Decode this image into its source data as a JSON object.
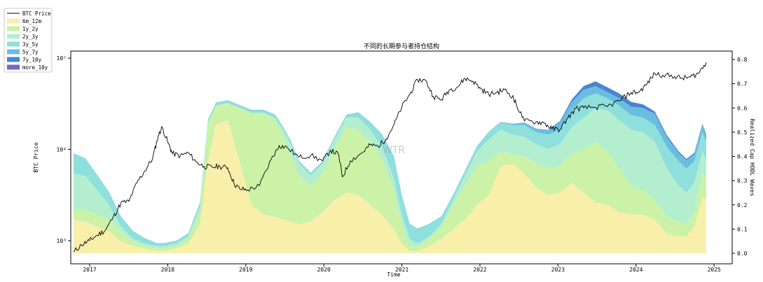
{
  "chart_data": {
    "type": "area",
    "title": "不同的长期参与者持仓结构",
    "xlabel": "Time",
    "ylabel_left": "BTC Price",
    "ylabel_right": "Realized Cap HODL Waves",
    "x_ticks": [
      "2017",
      "2018",
      "2019",
      "2020",
      "2021",
      "2022",
      "2023",
      "2024",
      "2025"
    ],
    "left_axis": {
      "scale": "log",
      "ticks": [
        {
          "label": "10³",
          "value": 1000
        },
        {
          "label": "10⁴",
          "value": 10000
        },
        {
          "label": "10⁵",
          "value": 100000
        }
      ]
    },
    "right_axis": {
      "range": [
        0,
        0.8
      ],
      "ticks": [
        "0.0",
        "0.1",
        "0.2",
        "0.3",
        "0.4",
        "0.5",
        "0.6",
        "0.7",
        "0.8"
      ]
    },
    "x_range": [
      2016.85,
      2024.85
    ],
    "watermark": "WTR",
    "legend": {
      "placement": "top-left",
      "entries": [
        {
          "name": "BTC Price",
          "color": "#000000",
          "kind": "line"
        },
        {
          "name": "6m_12m",
          "color": "#f8efab",
          "kind": "patch"
        },
        {
          "name": "1y_2y",
          "color": "#cbf2a6",
          "kind": "patch"
        },
        {
          "name": "2y_3y",
          "color": "#b3efcf",
          "kind": "patch"
        },
        {
          "name": "3y_5y",
          "color": "#8fdfdc",
          "kind": "patch"
        },
        {
          "name": "5y_7y",
          "color": "#6bbde0",
          "kind": "patch"
        },
        {
          "name": "7y_10y",
          "color": "#4a86cf",
          "kind": "patch"
        },
        {
          "name": "more_10y",
          "color": "#7a65c9",
          "kind": "patch"
        }
      ]
    },
    "x": [
      2016.85,
      2017.0,
      2017.15,
      2017.3,
      2017.45,
      2017.6,
      2017.75,
      2017.9,
      2018.0,
      2018.15,
      2018.3,
      2018.45,
      2018.55,
      2018.65,
      2018.8,
      2018.95,
      2019.1,
      2019.25,
      2019.4,
      2019.5,
      2019.6,
      2019.7,
      2019.85,
      2020.0,
      2020.15,
      2020.3,
      2020.45,
      2020.6,
      2020.75,
      2020.9,
      2021.0,
      2021.1,
      2021.2,
      2021.35,
      2021.5,
      2021.65,
      2021.8,
      2021.95,
      2022.1,
      2022.25,
      2022.4,
      2022.55,
      2022.7,
      2022.85,
      2023.0,
      2023.15,
      2023.3,
      2023.45,
      2023.6,
      2023.75,
      2023.9,
      2024.05,
      2024.2,
      2024.35,
      2024.5,
      2024.6,
      2024.7,
      2024.8,
      2024.85
    ],
    "series": [
      {
        "name": "6m_12m",
        "values": [
          0.14,
          0.13,
          0.11,
          0.09,
          0.05,
          0.03,
          0.02,
          0.01,
          0.01,
          0.02,
          0.04,
          0.12,
          0.38,
          0.53,
          0.55,
          0.38,
          0.2,
          0.16,
          0.15,
          0.14,
          0.13,
          0.12,
          0.13,
          0.17,
          0.22,
          0.25,
          0.24,
          0.2,
          0.16,
          0.1,
          0.04,
          0.01,
          0.01,
          0.03,
          0.06,
          0.1,
          0.14,
          0.2,
          0.24,
          0.36,
          0.37,
          0.33,
          0.27,
          0.24,
          0.25,
          0.29,
          0.25,
          0.21,
          0.2,
          0.17,
          0.16,
          0.16,
          0.14,
          0.08,
          0.07,
          0.07,
          0.11,
          0.23,
          0.22
        ]
      },
      {
        "name": "1y_2y",
        "values": [
          0.04,
          0.05,
          0.05,
          0.05,
          0.04,
          0.02,
          0.01,
          0.01,
          0.01,
          0.01,
          0.02,
          0.05,
          0.15,
          0.08,
          0.07,
          0.22,
          0.38,
          0.42,
          0.4,
          0.35,
          0.27,
          0.2,
          0.15,
          0.16,
          0.21,
          0.27,
          0.27,
          0.26,
          0.23,
          0.16,
          0.08,
          0.02,
          0.02,
          0.03,
          0.05,
          0.1,
          0.14,
          0.16,
          0.14,
          0.06,
          0.04,
          0.07,
          0.1,
          0.11,
          0.11,
          0.12,
          0.18,
          0.25,
          0.22,
          0.18,
          0.12,
          0.1,
          0.08,
          0.07,
          0.06,
          0.05,
          0.06,
          0.1,
          0.09
        ]
      },
      {
        "name": "2y_3y",
        "values": [
          0.15,
          0.14,
          0.1,
          0.06,
          0.02,
          0.01,
          0.01,
          0.01,
          0.01,
          0.01,
          0.01,
          0.02,
          0.01,
          0.0,
          0.0,
          0.0,
          0.0,
          0.0,
          0.01,
          0.02,
          0.05,
          0.05,
          0.04,
          0.04,
          0.04,
          0.04,
          0.05,
          0.05,
          0.05,
          0.05,
          0.04,
          0.03,
          0.01,
          0.01,
          0.01,
          0.02,
          0.04,
          0.06,
          0.09,
          0.09,
          0.08,
          0.08,
          0.08,
          0.08,
          0.09,
          0.11,
          0.13,
          0.14,
          0.17,
          0.2,
          0.23,
          0.24,
          0.24,
          0.2,
          0.15,
          0.13,
          0.12,
          0.09,
          0.08
        ]
      },
      {
        "name": "3y_5y",
        "values": [
          0.08,
          0.07,
          0.06,
          0.05,
          0.04,
          0.03,
          0.02,
          0.01,
          0.01,
          0.01,
          0.01,
          0.02,
          0.01,
          0.01,
          0.01,
          0.01,
          0.01,
          0.01,
          0.01,
          0.01,
          0.01,
          0.01,
          0.01,
          0.01,
          0.01,
          0.01,
          0.02,
          0.03,
          0.05,
          0.09,
          0.08,
          0.06,
          0.06,
          0.05,
          0.03,
          0.02,
          0.02,
          0.02,
          0.03,
          0.03,
          0.04,
          0.05,
          0.05,
          0.06,
          0.06,
          0.07,
          0.08,
          0.06,
          0.05,
          0.06,
          0.06,
          0.06,
          0.07,
          0.09,
          0.1,
          0.1,
          0.09,
          0.08,
          0.07
        ]
      },
      {
        "name": "5y_7y",
        "values": [
          0.002,
          0.002,
          0.002,
          0.002,
          0.002,
          0.002,
          0.002,
          0.002,
          0.002,
          0.002,
          0.002,
          0.002,
          0.002,
          0.002,
          0.002,
          0.002,
          0.002,
          0.002,
          0.002,
          0.002,
          0.002,
          0.002,
          0.002,
          0.002,
          0.002,
          0.002,
          0.002,
          0.002,
          0.002,
          0.002,
          0.002,
          0.002,
          0.002,
          0.002,
          0.002,
          0.002,
          0.002,
          0.002,
          0.002,
          0.002,
          0.005,
          0.01,
          0.015,
          0.02,
          0.03,
          0.035,
          0.035,
          0.03,
          0.025,
          0.03,
          0.035,
          0.04,
          0.045,
          0.04,
          0.035,
          0.035,
          0.03,
          0.03,
          0.03
        ]
      },
      {
        "name": "7y_10y",
        "values": [
          0,
          0,
          0,
          0,
          0,
          0,
          0,
          0,
          0,
          0,
          0,
          0,
          0,
          0,
          0,
          0,
          0,
          0,
          0,
          0,
          0,
          0,
          0,
          0,
          0,
          0,
          0,
          0,
          0,
          0,
          0,
          0,
          0,
          0,
          0,
          0,
          0,
          0,
          0,
          0,
          0,
          0,
          0,
          0,
          0.005,
          0.01,
          0.015,
          0.02,
          0.02,
          0.02,
          0.02,
          0.015,
          0.01,
          0.008,
          0.006,
          0.005,
          0.005,
          0.004,
          0.004
        ]
      },
      {
        "name": "more_10y",
        "values": [
          0,
          0,
          0,
          0,
          0,
          0,
          0,
          0,
          0,
          0,
          0,
          0,
          0,
          0,
          0,
          0,
          0,
          0,
          0,
          0,
          0,
          0,
          0,
          0,
          0,
          0,
          0,
          0,
          0,
          0,
          0,
          0,
          0,
          0,
          0,
          0,
          0,
          0,
          0,
          0,
          0,
          0,
          0,
          0,
          0,
          0,
          0,
          0,
          0,
          0,
          0,
          0,
          0,
          0,
          0,
          0,
          0,
          0,
          0
        ]
      }
    ],
    "price": {
      "name": "BTC Price",
      "x": [
        2016.85,
        2016.95,
        2017.05,
        2017.15,
        2017.25,
        2017.35,
        2017.45,
        2017.55,
        2017.65,
        2017.75,
        2017.85,
        2017.92,
        2017.97,
        2018.05,
        2018.1,
        2018.2,
        2018.3,
        2018.4,
        2018.5,
        2018.6,
        2018.7,
        2018.8,
        2018.88,
        2018.95,
        2019.05,
        2019.2,
        2019.35,
        2019.45,
        2019.55,
        2019.7,
        2019.85,
        2020.0,
        2020.1,
        2020.2,
        2020.25,
        2020.35,
        2020.5,
        2020.6,
        2020.7,
        2020.8,
        2020.9,
        2021.0,
        2021.1,
        2021.2,
        2021.3,
        2021.4,
        2021.5,
        2021.6,
        2021.7,
        2021.8,
        2021.9,
        2022.0,
        2022.1,
        2022.2,
        2022.3,
        2022.4,
        2022.45,
        2022.55,
        2022.7,
        2022.8,
        2022.9,
        2023.0,
        2023.1,
        2023.2,
        2023.3,
        2023.45,
        2023.6,
        2023.75,
        2023.9,
        2024.0,
        2024.1,
        2024.2,
        2024.3,
        2024.45,
        2024.55,
        2024.65,
        2024.75,
        2024.85
      ],
      "values": [
        750,
        900,
        1000,
        1150,
        1300,
        1800,
        2600,
        2700,
        4300,
        5800,
        8000,
        14000,
        17500,
        11500,
        9000,
        8500,
        9200,
        7300,
        6500,
        6400,
        6500,
        6300,
        4200,
        3700,
        3600,
        4000,
        7800,
        11000,
        10500,
        8200,
        8600,
        7500,
        9800,
        8800,
        5000,
        7500,
        9200,
        11200,
        10800,
        13000,
        18500,
        29000,
        40000,
        58000,
        57000,
        38000,
        35000,
        45000,
        48000,
        60000,
        56000,
        46000,
        40000,
        42000,
        45000,
        38000,
        31000,
        20500,
        20000,
        19500,
        16800,
        16500,
        22000,
        28000,
        28500,
        29000,
        29500,
        34000,
        42000,
        42500,
        52000,
        68000,
        65000,
        63000,
        60000,
        62000,
        68000,
        90000
      ]
    }
  }
}
